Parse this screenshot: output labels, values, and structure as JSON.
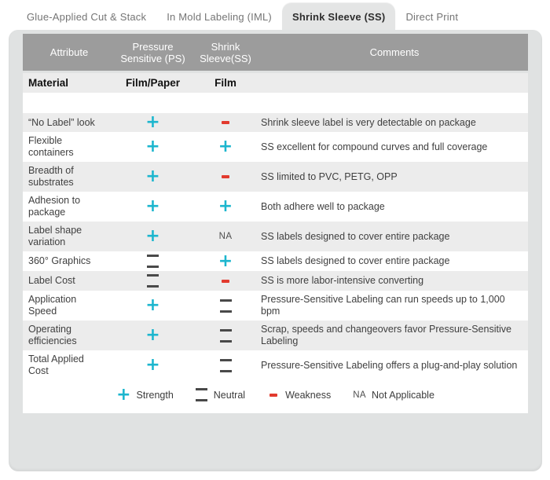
{
  "tabs": [
    {
      "label": "Glue-Applied Cut & Stack",
      "active": false
    },
    {
      "label": "In Mold Labeling (IML)",
      "active": false
    },
    {
      "label": "Shrink Sleeve (SS)",
      "active": true
    },
    {
      "label": "Direct Print",
      "active": false
    }
  ],
  "table": {
    "headers": {
      "attribute": "Attribute",
      "ps": "Pressure Sensitive (PS)",
      "ss": "Shrink Sleeve(SS)",
      "comments": "Comments"
    },
    "material_row": {
      "attribute": "Material",
      "ps": "Film/Paper",
      "ss": "Film"
    },
    "rows": [
      {
        "attribute": "“No Label” look",
        "ps": "plus",
        "ss": "minus",
        "comment": "Shrink sleeve label is very detectable on package"
      },
      {
        "attribute": "Flexible containers",
        "ps": "plus",
        "ss": "plus",
        "comment": "SS excellent for compound curves and full coverage"
      },
      {
        "attribute": "Breadth of substrates",
        "ps": "plus",
        "ss": "minus",
        "comment": "SS limited to PVC, PETG, OPP"
      },
      {
        "attribute": "Adhesion to package",
        "ps": "plus",
        "ss": "plus",
        "comment": "Both adhere well to package"
      },
      {
        "attribute": "Label shape variation",
        "ps": "plus",
        "ss": "na",
        "comment": "SS labels designed to cover entire package"
      },
      {
        "attribute": "360° Graphics",
        "ps": "equals",
        "ss": "plus",
        "comment": "SS labels designed to cover entire package"
      },
      {
        "attribute": "Label Cost",
        "ps": "equals",
        "ss": "minus",
        "comment": "SS is more labor-intensive converting"
      },
      {
        "attribute": "Application Speed",
        "ps": "plus",
        "ss": "equals",
        "comment": "Pressure-Sensitive Labeling can run speeds up to 1,000 bpm"
      },
      {
        "attribute": "Operating efficiencies",
        "ps": "plus",
        "ss": "equals",
        "comment": "Scrap, speeds and changeovers favor Pressure-Sensitive Labeling"
      },
      {
        "attribute": "Total Applied Cost",
        "ps": "plus",
        "ss": "equals",
        "comment": "Pressure-Sensitive Labeling offers a plug-and-play solution"
      }
    ],
    "symbols": {
      "plus": "+",
      "minus": "-",
      "equals": "=",
      "na": "NA"
    },
    "legend": [
      {
        "symbol": "plus",
        "label": "Strength"
      },
      {
        "symbol": "equals",
        "label": "Neutral"
      },
      {
        "symbol": "minus",
        "label": "Weakness"
      },
      {
        "symbol": "na",
        "label": "Not Applicable"
      }
    ]
  },
  "colors": {
    "strength": "#1cb6ce",
    "weakness": "#e23a2e",
    "neutral": "#494949",
    "header_bg": "#9c9c9c",
    "row_alt_bg": "#ececec",
    "panel_bg": "#e0e2e2"
  }
}
